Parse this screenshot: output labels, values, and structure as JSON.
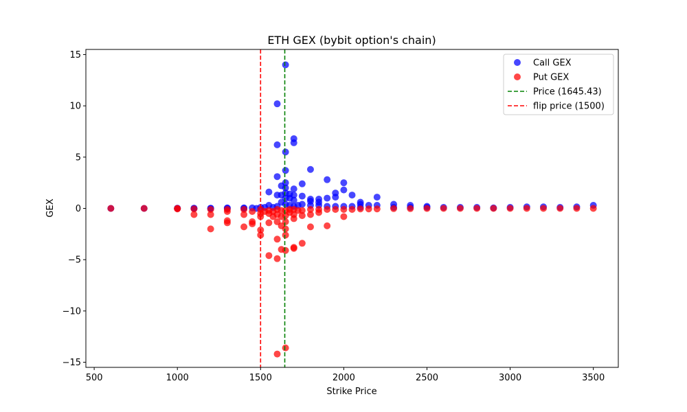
{
  "chart_data": {
    "type": "scatter",
    "title": "ETH GEX (bybit option's chain)",
    "xlabel": "Strike Price",
    "ylabel": "GEX",
    "xlim": [
      450,
      3650
    ],
    "ylim": [
      -15.5,
      15.5
    ],
    "xticks": [
      500,
      1000,
      1500,
      2000,
      2500,
      3000,
      3500
    ],
    "yticks": [
      -15,
      -10,
      -5,
      0,
      5,
      10,
      15
    ],
    "ytick_labels": [
      "−15",
      "−10",
      "−5",
      "0",
      "5",
      "10",
      "15"
    ],
    "grid": false,
    "legend_position": "top-right",
    "series": [
      {
        "name": "Call GEX",
        "color": "#0000ff",
        "points": [
          [
            600,
            0
          ],
          [
            800,
            0
          ],
          [
            1000,
            0
          ],
          [
            1000,
            0.02
          ],
          [
            1100,
            0
          ],
          [
            1100,
            0.02
          ],
          [
            1200,
            0
          ],
          [
            1200,
            0.02
          ],
          [
            1300,
            0
          ],
          [
            1300,
            0.05
          ],
          [
            1400,
            0
          ],
          [
            1400,
            0.05
          ],
          [
            1450,
            0.05
          ],
          [
            1475,
            0
          ],
          [
            1500,
            0.1
          ],
          [
            1525,
            0.1
          ],
          [
            1550,
            0.3
          ],
          [
            1550,
            1.6
          ],
          [
            1575,
            0.1
          ],
          [
            1600,
            0.2
          ],
          [
            1600,
            1.3
          ],
          [
            1600,
            3.1
          ],
          [
            1600,
            6.2
          ],
          [
            1600,
            10.2
          ],
          [
            1625,
            0.6
          ],
          [
            1625,
            1.3
          ],
          [
            1625,
            2.2
          ],
          [
            1650,
            0.4
          ],
          [
            1650,
            1.0
          ],
          [
            1650,
            1.5
          ],
          [
            1650,
            2.0
          ],
          [
            1650,
            2.5
          ],
          [
            1650,
            3.7
          ],
          [
            1650,
            5.5
          ],
          [
            1650,
            14.0
          ],
          [
            1675,
            0.3
          ],
          [
            1675,
            1.0
          ],
          [
            1675,
            1.4
          ],
          [
            1700,
            0.2
          ],
          [
            1700,
            0.8
          ],
          [
            1700,
            1.3
          ],
          [
            1700,
            1.9
          ],
          [
            1700,
            6.4
          ],
          [
            1700,
            6.8
          ],
          [
            1725,
            0.3
          ],
          [
            1750,
            0.4
          ],
          [
            1750,
            1.2
          ],
          [
            1750,
            2.4
          ],
          [
            1800,
            0.3
          ],
          [
            1800,
            0.7
          ],
          [
            1800,
            0.9
          ],
          [
            1800,
            3.8
          ],
          [
            1850,
            0.3
          ],
          [
            1850,
            0.6
          ],
          [
            1850,
            0.9
          ],
          [
            1900,
            0.2
          ],
          [
            1900,
            1.0
          ],
          [
            1900,
            2.8
          ],
          [
            1950,
            0.2
          ],
          [
            1950,
            1.1
          ],
          [
            1950,
            1.5
          ],
          [
            2000,
            0.2
          ],
          [
            2000,
            1.8
          ],
          [
            2000,
            2.5
          ],
          [
            2050,
            0.2
          ],
          [
            2050,
            1.3
          ],
          [
            2100,
            0.1
          ],
          [
            2100,
            0.4
          ],
          [
            2100,
            0.6
          ],
          [
            2150,
            0.3
          ],
          [
            2200,
            0.3
          ],
          [
            2200,
            1.1
          ],
          [
            2300,
            0.1
          ],
          [
            2300,
            0.4
          ],
          [
            2400,
            0.1
          ],
          [
            2400,
            0.3
          ],
          [
            2500,
            0.1
          ],
          [
            2500,
            0.2
          ],
          [
            2600,
            0.1
          ],
          [
            2700,
            0.1
          ],
          [
            2800,
            0.1
          ],
          [
            2900,
            0.05
          ],
          [
            3000,
            0.1
          ],
          [
            3100,
            0.15
          ],
          [
            3200,
            0.15
          ],
          [
            3300,
            0.1
          ],
          [
            3400,
            0.15
          ],
          [
            3500,
            0.3
          ]
        ]
      },
      {
        "name": "Put GEX",
        "color": "#ff0000",
        "points": [
          [
            600,
            0
          ],
          [
            800,
            0
          ],
          [
            1000,
            0
          ],
          [
            1000,
            -0.05
          ],
          [
            1100,
            -0.05
          ],
          [
            1100,
            -0.6
          ],
          [
            1200,
            -0.1
          ],
          [
            1200,
            -0.6
          ],
          [
            1200,
            -2.0
          ],
          [
            1300,
            -0.1
          ],
          [
            1300,
            -0.3
          ],
          [
            1300,
            -1.2
          ],
          [
            1300,
            -1.4
          ],
          [
            1400,
            -0.1
          ],
          [
            1400,
            -0.6
          ],
          [
            1400,
            -1.8
          ],
          [
            1450,
            -0.3
          ],
          [
            1450,
            -1.3
          ],
          [
            1450,
            -1.5
          ],
          [
            1500,
            -0.1
          ],
          [
            1500,
            -0.5
          ],
          [
            1500,
            -0.8
          ],
          [
            1500,
            -2.1
          ],
          [
            1500,
            -2.6
          ],
          [
            1525,
            -0.3
          ],
          [
            1550,
            -0.2
          ],
          [
            1550,
            -0.5
          ],
          [
            1550,
            -1.4
          ],
          [
            1550,
            -4.6
          ],
          [
            1575,
            -0.3
          ],
          [
            1575,
            -0.8
          ],
          [
            1600,
            -0.1
          ],
          [
            1600,
            -0.6
          ],
          [
            1600,
            -1.3
          ],
          [
            1600,
            -3.0
          ],
          [
            1600,
            -4.9
          ],
          [
            1600,
            -14.2
          ],
          [
            1625,
            -0.2
          ],
          [
            1625,
            -0.8
          ],
          [
            1625,
            -1.7
          ],
          [
            1625,
            -4.0
          ],
          [
            1650,
            -0.2
          ],
          [
            1650,
            -0.7
          ],
          [
            1650,
            -1.3
          ],
          [
            1650,
            -2.0
          ],
          [
            1650,
            -2.6
          ],
          [
            1650,
            -4.1
          ],
          [
            1650,
            -13.6
          ],
          [
            1675,
            -0.1
          ],
          [
            1675,
            -0.4
          ],
          [
            1700,
            -0.1
          ],
          [
            1700,
            -0.6
          ],
          [
            1700,
            -1.0
          ],
          [
            1700,
            -3.8
          ],
          [
            1700,
            -3.9
          ],
          [
            1725,
            -0.2
          ],
          [
            1750,
            -0.2
          ],
          [
            1750,
            -0.7
          ],
          [
            1750,
            -3.4
          ],
          [
            1800,
            -0.1
          ],
          [
            1800,
            -0.6
          ],
          [
            1800,
            -1.8
          ],
          [
            1850,
            -0.1
          ],
          [
            1850,
            -0.4
          ],
          [
            1900,
            -0.1
          ],
          [
            1900,
            -1.7
          ],
          [
            1950,
            -0.1
          ],
          [
            2000,
            -0.1
          ],
          [
            2000,
            -0.8
          ],
          [
            2050,
            -0.1
          ],
          [
            2100,
            -0.05
          ],
          [
            2150,
            -0.05
          ],
          [
            2200,
            -0.05
          ],
          [
            2300,
            -0.02
          ],
          [
            2400,
            -0.02
          ],
          [
            2500,
            -0.01
          ],
          [
            2600,
            0
          ],
          [
            2700,
            0
          ],
          [
            2800,
            0
          ],
          [
            2900,
            0
          ],
          [
            3000,
            0
          ],
          [
            3100,
            0
          ],
          [
            3200,
            0
          ],
          [
            3300,
            0
          ],
          [
            3400,
            0
          ],
          [
            3500,
            0
          ]
        ]
      }
    ],
    "vlines": [
      {
        "name": "Price (1645.43)",
        "x": 1645.43,
        "color": "#008000",
        "style": "dashed"
      },
      {
        "name": "flip price (1500)",
        "x": 1500,
        "color": "#ff0000",
        "style": "dashed"
      }
    ]
  }
}
